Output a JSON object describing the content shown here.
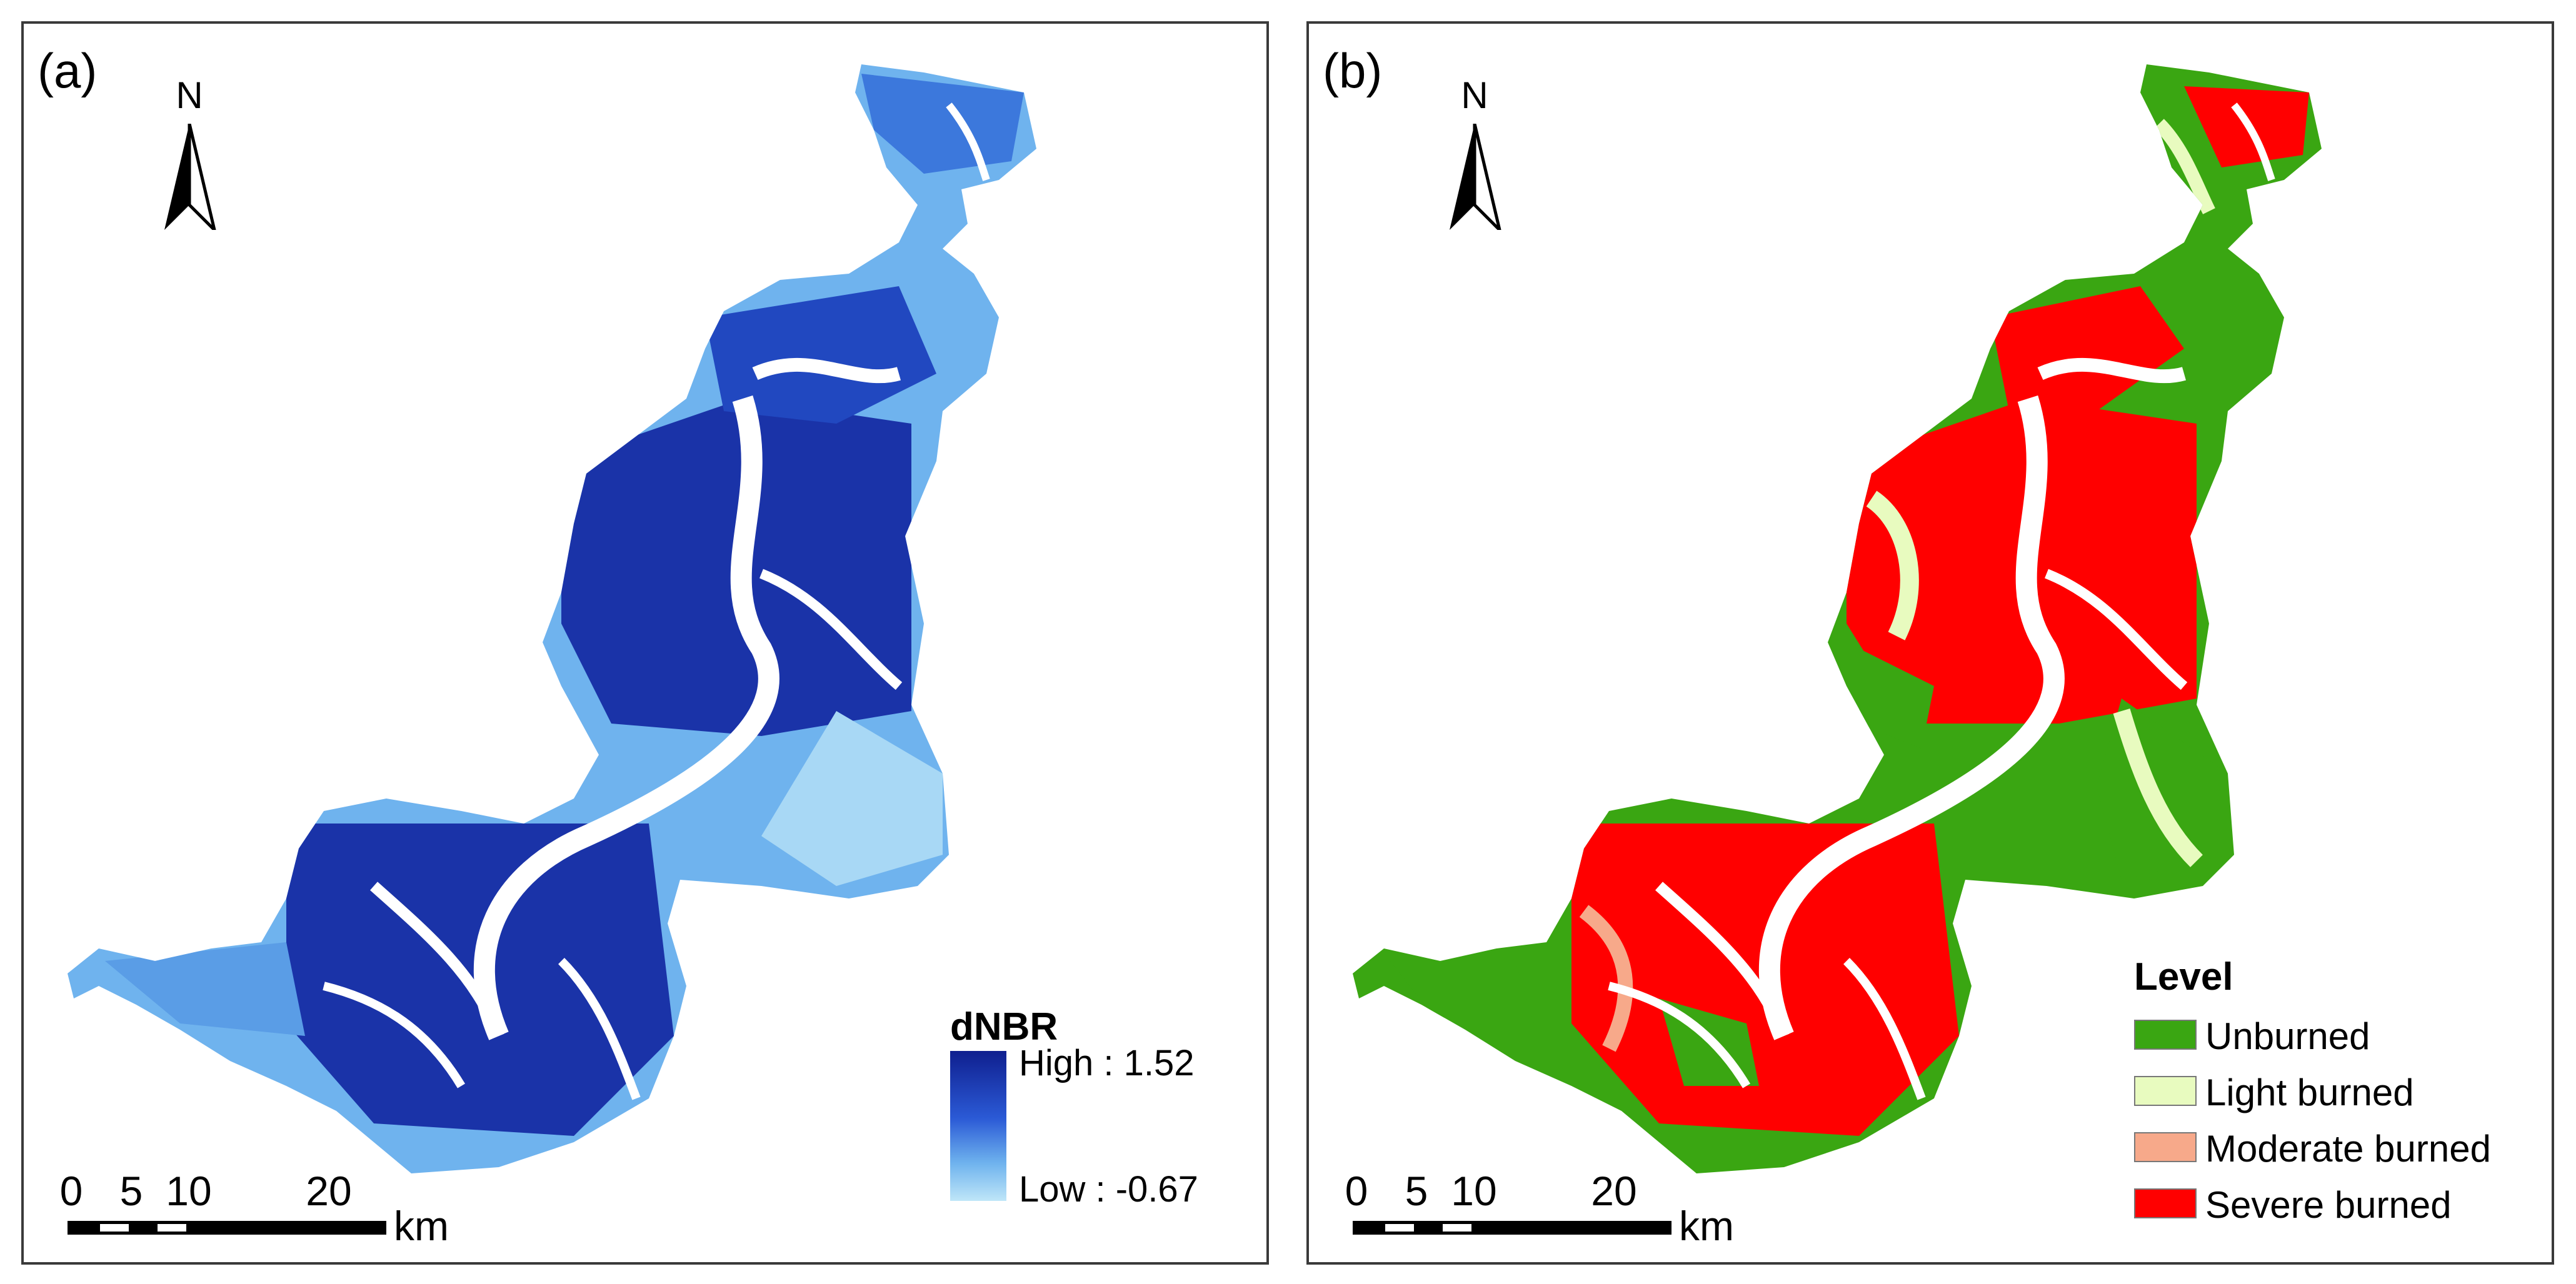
{
  "colors": {
    "dnbr_high": "#0f1f8f",
    "dnbr_mid": "#2b5ad6",
    "dnbr_low": "#bfe6f8",
    "unburned": "#3aa612",
    "light_burned": "#e8fbbf",
    "moderate_burned": "#f7a98a",
    "severe_burned": "#ff0000"
  },
  "panels": [
    {
      "label": "(a)",
      "north_label": "N",
      "scalebar": {
        "ticks": [
          "0",
          "5",
          "10",
          "20"
        ],
        "unit": "km"
      },
      "legend": {
        "title": "dNBR",
        "high_label": "High : 1.52",
        "low_label": "Low : -0.67"
      }
    },
    {
      "label": "(b)",
      "north_label": "N",
      "scalebar": {
        "ticks": [
          "0",
          "5",
          "10",
          "20"
        ],
        "unit": "km"
      },
      "legend": {
        "title": "Level",
        "items": [
          {
            "label": "Unburned",
            "color": "#3aa612"
          },
          {
            "label": "Light burned",
            "color": "#e8fbbf"
          },
          {
            "label": "Moderate burned",
            "color": "#f7a98a"
          },
          {
            "label": "Severe burned",
            "color": "#ff0000"
          }
        ]
      }
    }
  ]
}
